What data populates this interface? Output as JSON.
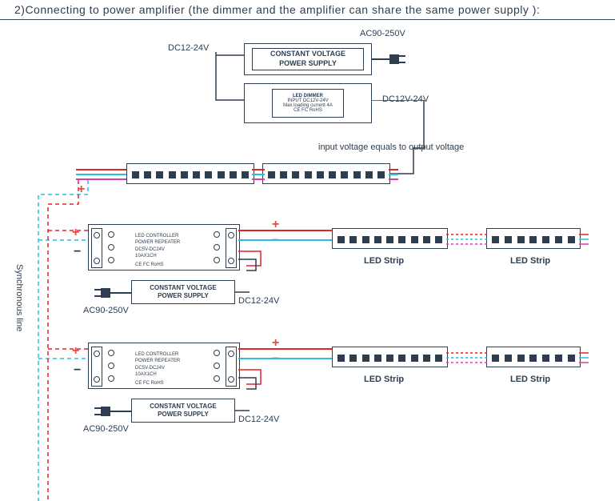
{
  "title": "2)Connecting to power amplifier (the dimmer and the amplifier can share the same power supply ):",
  "labels": {
    "ac_top": "AC90-250V",
    "dc_top": "DC12-24V",
    "dc_right": "DC12V-24V",
    "voltage_note": "input voltage equals to output voltage",
    "sync_line": "Synchronous line",
    "ac_mid1": "AC90-250V",
    "ac_mid2": "AC90-250V",
    "dc_mid1": "DC12-24V",
    "dc_mid2": "DC12-24V",
    "strip": "LED Strip"
  },
  "psu": {
    "line1": "CONSTANT VOLTAGE",
    "line2": "POWER SUPPLY"
  },
  "dimmer": {
    "title": "LED DIMMER",
    "l1": "INPUT   DC12V-24V",
    "l2": "Max loading current 4A",
    "l3": "CE FC RoHS"
  },
  "controller": {
    "l1": "LED CONTROLLER",
    "l2": "POWER REPEATER",
    "l3": "DC5V-DC24V",
    "l4": "10AX1CH",
    "l5": "CE FC RoHS"
  },
  "colors": {
    "stroke": "#2c3e50",
    "red": "#e0242a",
    "cyan": "#2dbce0",
    "magenta": "#d83ea8",
    "bg": "#ffffff"
  },
  "geometry": {
    "seg_dots": 10,
    "strip_dots_wide": 9,
    "strip_dots_narrow": 7
  }
}
